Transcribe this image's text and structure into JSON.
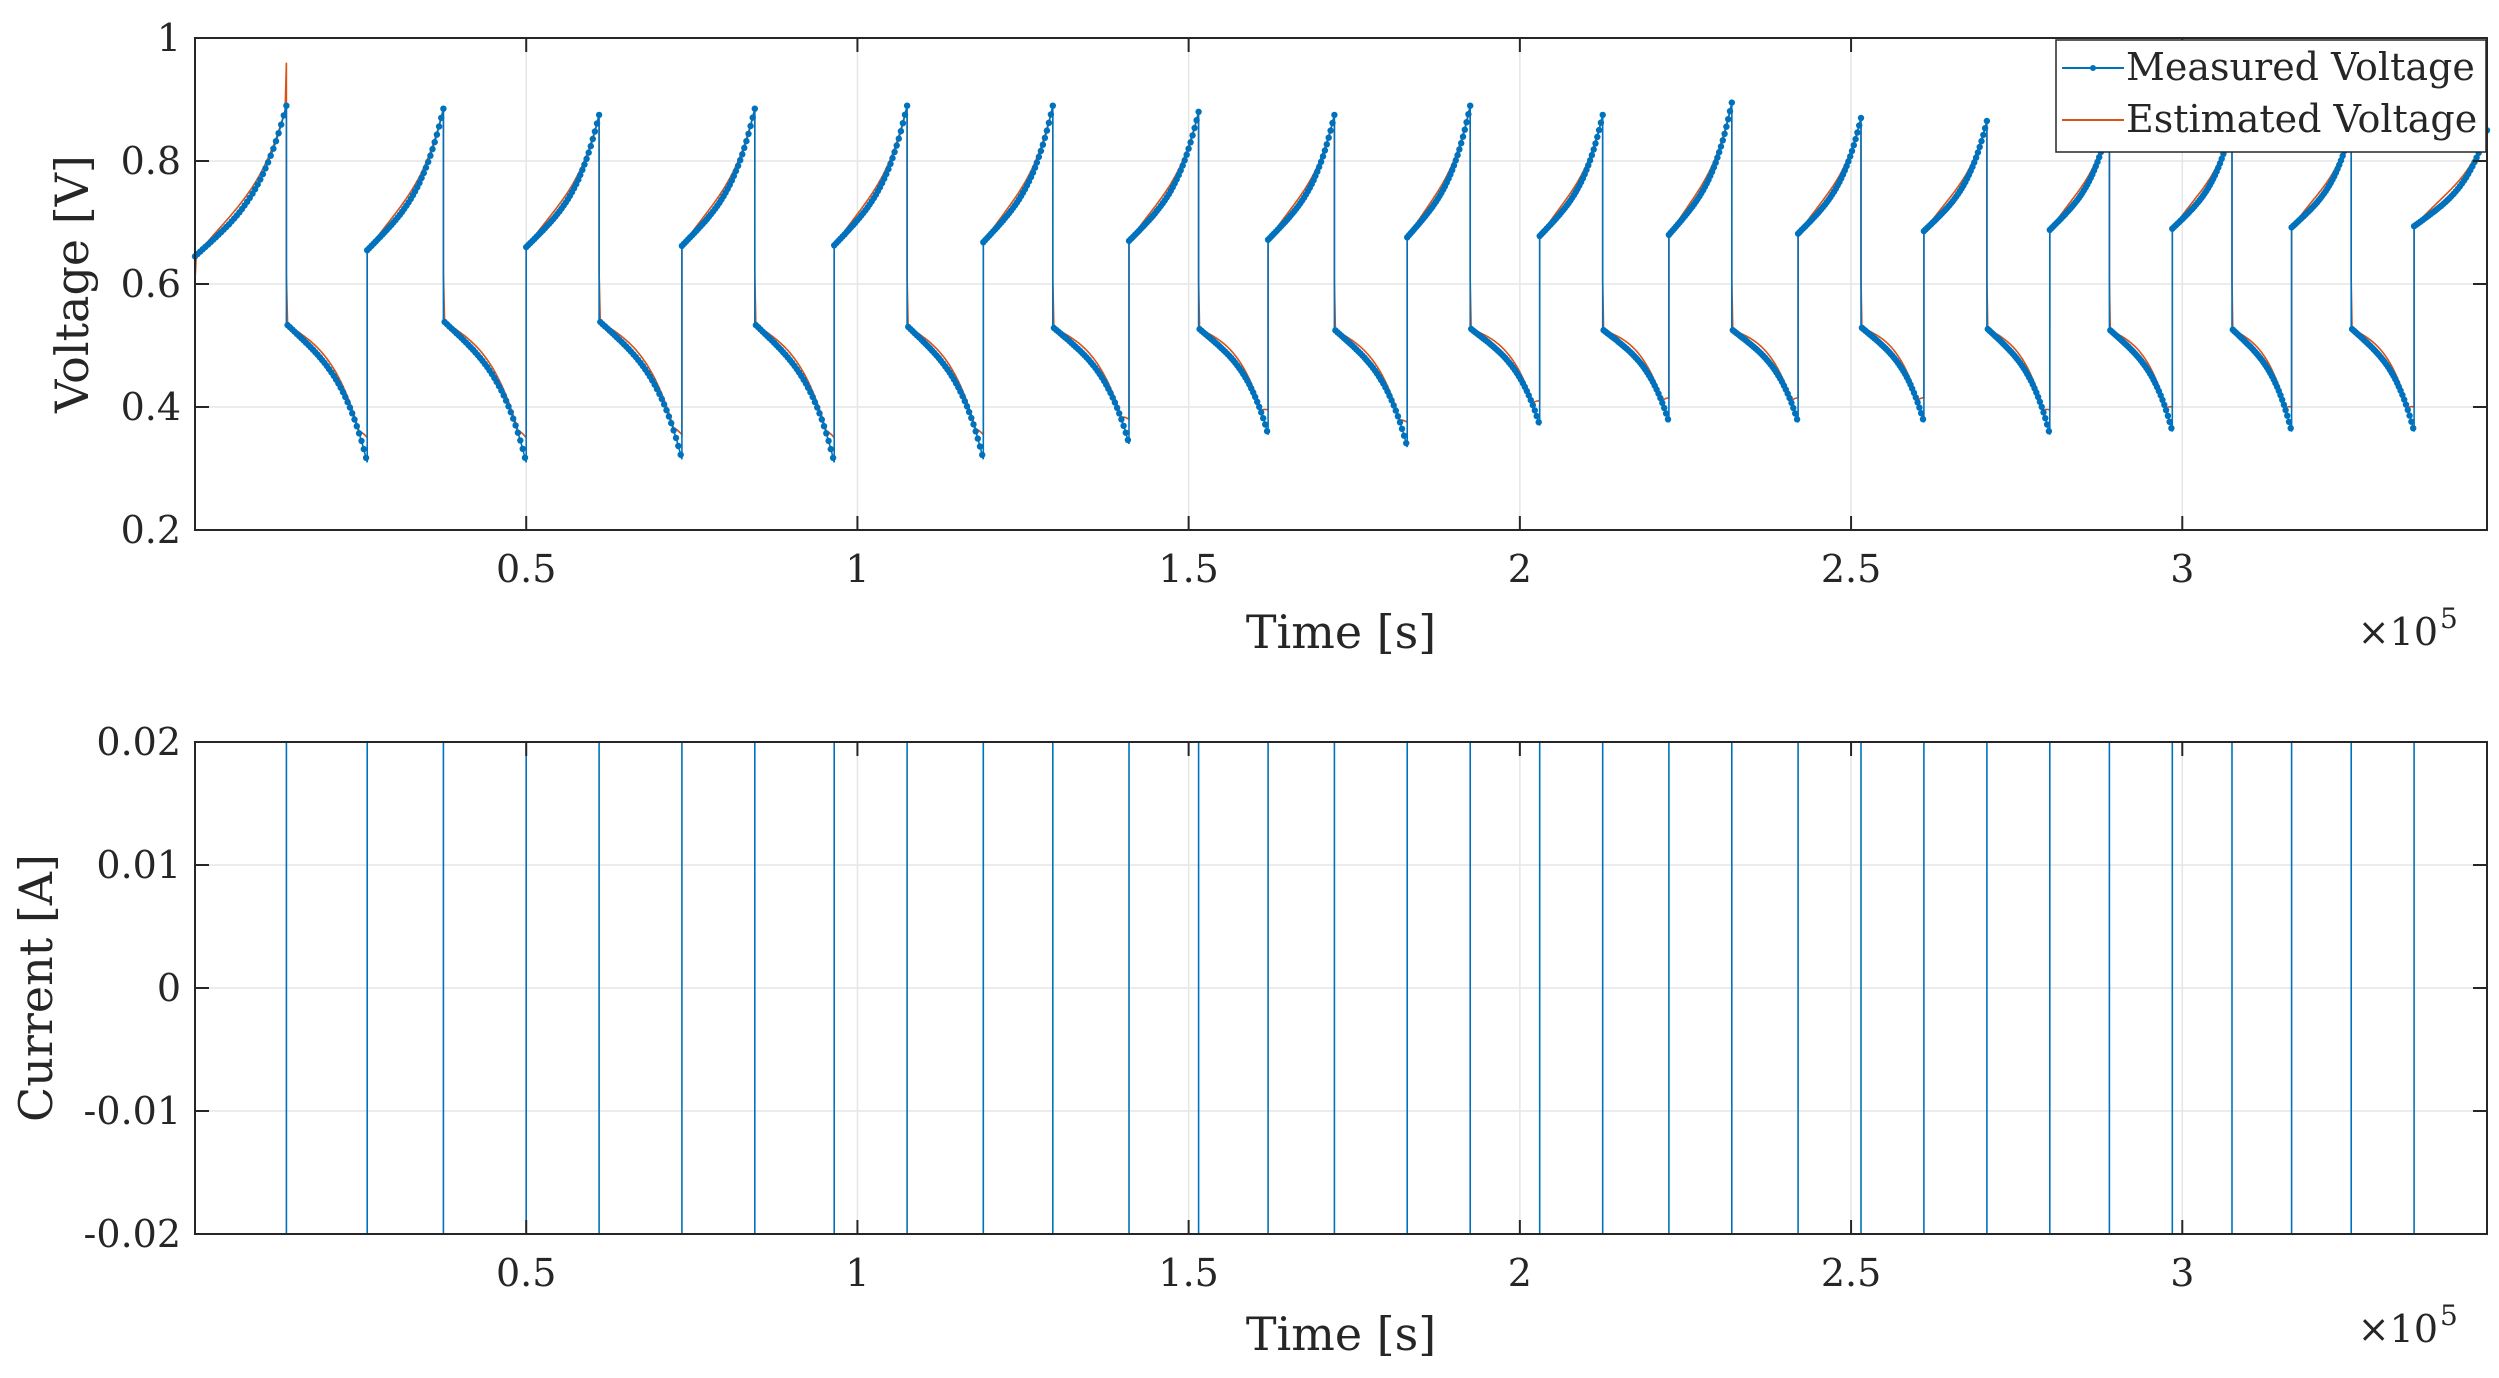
{
  "colors": {
    "measured": "#0072BD",
    "estimated": "#D95319",
    "current": "#0072BD",
    "axis": "#262626",
    "grid": "#e6e6e6"
  },
  "chart_data": [
    {
      "type": "line",
      "xlabel": "Time [s]",
      "ylabel": "Voltage [V]",
      "x_multiplier_label": "×10",
      "x_multiplier_exp": "5",
      "xlim": [
        0,
        346000
      ],
      "ylim": [
        0.2,
        1.0
      ],
      "xticks": [
        50000,
        100000,
        150000,
        200000,
        250000,
        300000
      ],
      "xtick_labels": [
        "0.5",
        "1",
        "1.5",
        "2",
        "2.5",
        "3"
      ],
      "yticks": [
        0.2,
        0.4,
        0.6,
        0.8,
        1.0
      ],
      "ytick_labels": [
        "0.2",
        "0.4",
        "0.6",
        "0.8",
        "1"
      ],
      "grid": true,
      "legend_position": "top-right",
      "legend": [
        "Measured Voltage",
        "Estimated Voltage"
      ],
      "switch_times": [
        0,
        13800,
        26000,
        37500,
        50000,
        61000,
        73500,
        84500,
        96500,
        107500,
        119000,
        129500,
        141000,
        151500,
        162000,
        172000,
        183000,
        192500,
        203000,
        212500,
        222500,
        232000,
        242000,
        251500,
        261000,
        270500,
        280000,
        289000,
        298500,
        307500,
        316500,
        325500,
        335000,
        346000
      ],
      "charge_start": [
        0.645,
        0.655,
        0.66,
        0.662,
        0.663,
        0.668,
        0.67,
        0.672,
        0.676,
        0.678,
        0.68,
        0.682,
        0.686,
        0.688,
        0.69,
        0.692,
        0.694
      ],
      "charge_peak": [
        0.89,
        0.885,
        0.875,
        0.885,
        0.89,
        0.89,
        0.88,
        0.875,
        0.89,
        0.875,
        0.895,
        0.87,
        0.865,
        0.865,
        0.86,
        0.855,
        0.85
      ],
      "discharge_start": [
        0.535,
        0.54,
        0.54,
        0.535,
        0.532,
        0.53,
        0.528,
        0.526,
        0.528,
        0.526,
        0.526,
        0.53,
        0.528,
        0.526,
        0.527,
        0.528
      ],
      "discharge_end": [
        0.31,
        0.31,
        0.315,
        0.31,
        0.315,
        0.34,
        0.355,
        0.335,
        0.37,
        0.375,
        0.375,
        0.375,
        0.355,
        0.36,
        0.36,
        0.36
      ],
      "estimated_spike": [
        0.96,
        0.88,
        0.86,
        0.88,
        0.87,
        0.88,
        0.87,
        0.86,
        0.87,
        0.86,
        0.88,
        0.86,
        0.85,
        0.85,
        0.85,
        0.84,
        0.84
      ]
    },
    {
      "type": "line",
      "xlabel": "Time [s]",
      "ylabel": "Current [A]",
      "x_multiplier_label": "×10",
      "x_multiplier_exp": "5",
      "xlim": [
        0,
        346000
      ],
      "ylim": [
        -0.02,
        0.02
      ],
      "xticks": [
        50000,
        100000,
        150000,
        200000,
        250000,
        300000
      ],
      "xtick_labels": [
        "0.5",
        "1",
        "1.5",
        "2",
        "2.5",
        "3"
      ],
      "yticks": [
        -0.02,
        -0.01,
        0,
        0.01,
        0.02
      ],
      "ytick_labels": [
        "-0.02",
        "-0.01",
        "0",
        "0.01",
        "0.02"
      ],
      "grid": true,
      "levels": [
        0.02,
        -0.02
      ]
    }
  ]
}
